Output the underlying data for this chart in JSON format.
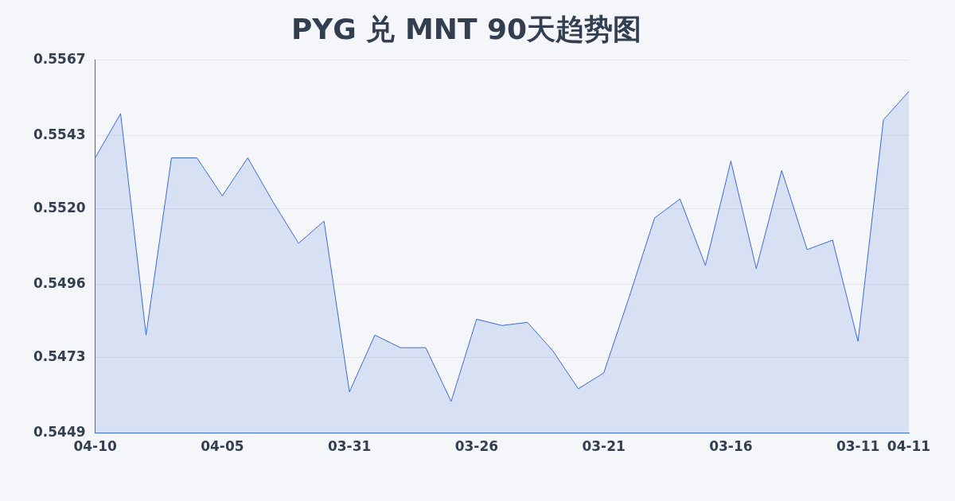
{
  "chart_data": {
    "type": "area",
    "title": "PYG 兑 MNT 90天趋势图",
    "categories": [
      "04-10",
      null,
      null,
      null,
      null,
      "04-05",
      null,
      null,
      null,
      null,
      "03-31",
      null,
      null,
      null,
      null,
      "03-26",
      null,
      null,
      null,
      null,
      "03-21",
      null,
      null,
      null,
      null,
      "03-16",
      null,
      null,
      null,
      null,
      "03-11",
      null,
      "04-11"
    ],
    "series": [
      {
        "color": "#3a6bd4",
        "values": [
          0.5536,
          0.555,
          0.548,
          0.5536,
          0.5536,
          0.5524,
          0.5536,
          0.5522,
          0.5509,
          0.5516,
          0.5462,
          0.548,
          0.5476,
          0.5476,
          0.5459,
          0.5485,
          0.5483,
          0.5484,
          0.5475,
          0.5463,
          0.5468,
          0.5492,
          0.5517,
          0.5523,
          0.5502,
          0.5535,
          0.5501,
          0.5532,
          0.5507,
          0.551,
          0.5478,
          0.5548,
          0.5557
        ]
      }
    ],
    "ylim": [
      0.5449,
      0.5567
    ],
    "yticks": [
      0.5449,
      0.5473,
      0.5496,
      {
        "value": 0.552,
        "label": "0.5520"
      },
      0.5543,
      0.5567
    ],
    "grid": "y"
  }
}
